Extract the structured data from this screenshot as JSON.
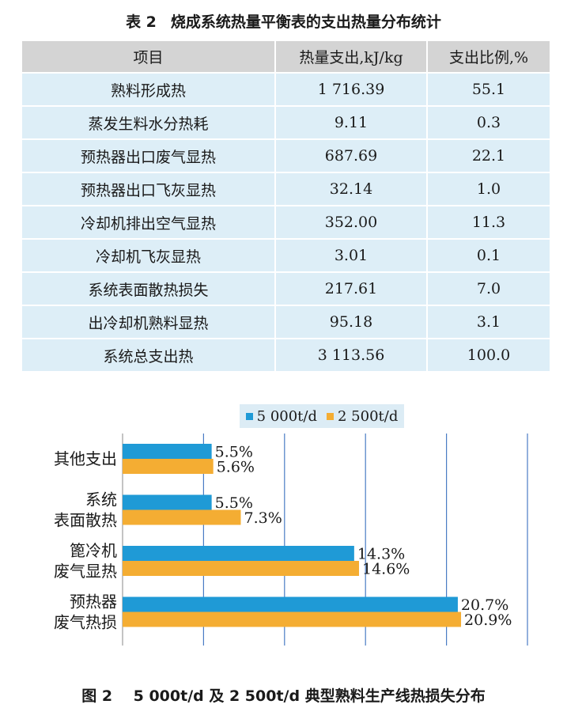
{
  "table": {
    "number": "表 2",
    "title": "烧成系统热量平衡表的支出热量分布统计",
    "headers": [
      "项目",
      "热量支出,kJ/kg",
      "支出比例,%"
    ],
    "rows": [
      [
        "熟料形成热",
        "1 716.39",
        "55.1"
      ],
      [
        "蒸发生料水分热耗",
        "9.11",
        "0.3"
      ],
      [
        "预热器出口废气显热",
        "687.69",
        "22.1"
      ],
      [
        "预热器出口飞灰显热",
        "32.14",
        "1.0"
      ],
      [
        "冷却机排出空气显热",
        "352.00",
        "11.3"
      ],
      [
        "冷却机飞灰显热",
        "3.01",
        "0.1"
      ],
      [
        "系统表面散热损失",
        "217.61",
        "7.0"
      ],
      [
        "出冷却机熟料显热",
        "95.18",
        "3.1"
      ],
      [
        "系统总支出热",
        "3 113.56",
        "100.0"
      ]
    ]
  },
  "colors": {
    "series_a": "#1f9ad6",
    "series_b": "#f4ad33",
    "grid": "#4a7cc4"
  },
  "chart_data": {
    "type": "bar",
    "orientation": "horizontal",
    "categories": [
      [
        "其他支出"
      ],
      [
        "系统",
        "表面散热"
      ],
      [
        "篦冷机",
        "废气显热"
      ],
      [
        "预热器",
        "废气热损"
      ]
    ],
    "series": [
      {
        "name": "5 000t/d",
        "values": [
          5.5,
          5.5,
          14.3,
          20.7
        ],
        "labels": [
          "5.5%",
          "5.5%",
          "14.3%",
          "20.7%"
        ]
      },
      {
        "name": "2 500t/d",
        "values": [
          5.6,
          7.3,
          14.6,
          20.9
        ],
        "labels": [
          "5.6%",
          "7.3%",
          "14.6%",
          "20.9%"
        ]
      }
    ],
    "xlim": [
      0,
      25
    ],
    "x_gridlines": [
      5,
      10,
      15,
      20,
      25
    ],
    "legend_position": "top",
    "title": ""
  },
  "figure": {
    "number": "图 2",
    "caption": "5 000t/d 及 2 500t/d 典型熟料生产线热损失分布"
  }
}
